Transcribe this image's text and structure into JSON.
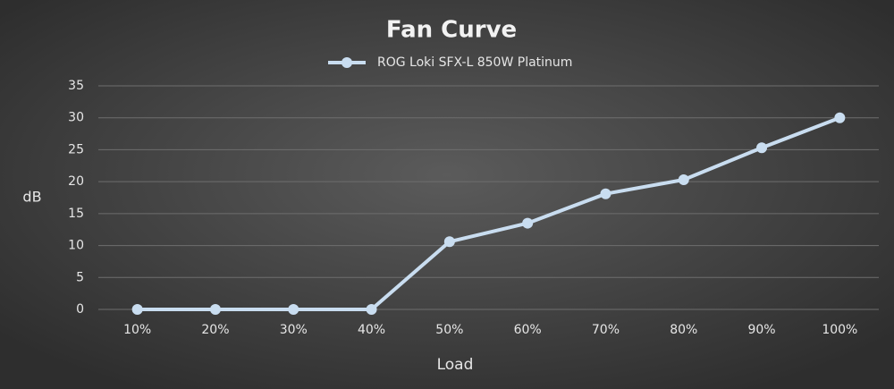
{
  "chart_data": {
    "type": "line",
    "title": "Fan Curve",
    "x_label": "Load",
    "y_label": "dB",
    "categories": [
      "10%",
      "20%",
      "30%",
      "40%",
      "50%",
      "60%",
      "70%",
      "80%",
      "90%",
      "100%"
    ],
    "series": [
      {
        "name": "ROG Loki SFX-L 850W Platinum",
        "color": "#c9ddf0",
        "values": [
          0,
          0,
          0,
          0,
          10.6,
          13.5,
          18.1,
          20.3,
          25.3,
          30
        ]
      }
    ],
    "ylim": [
      0,
      35
    ],
    "yticks": [
      0,
      5,
      10,
      15,
      20,
      25,
      30,
      35
    ],
    "grid": true,
    "legend": "top"
  }
}
